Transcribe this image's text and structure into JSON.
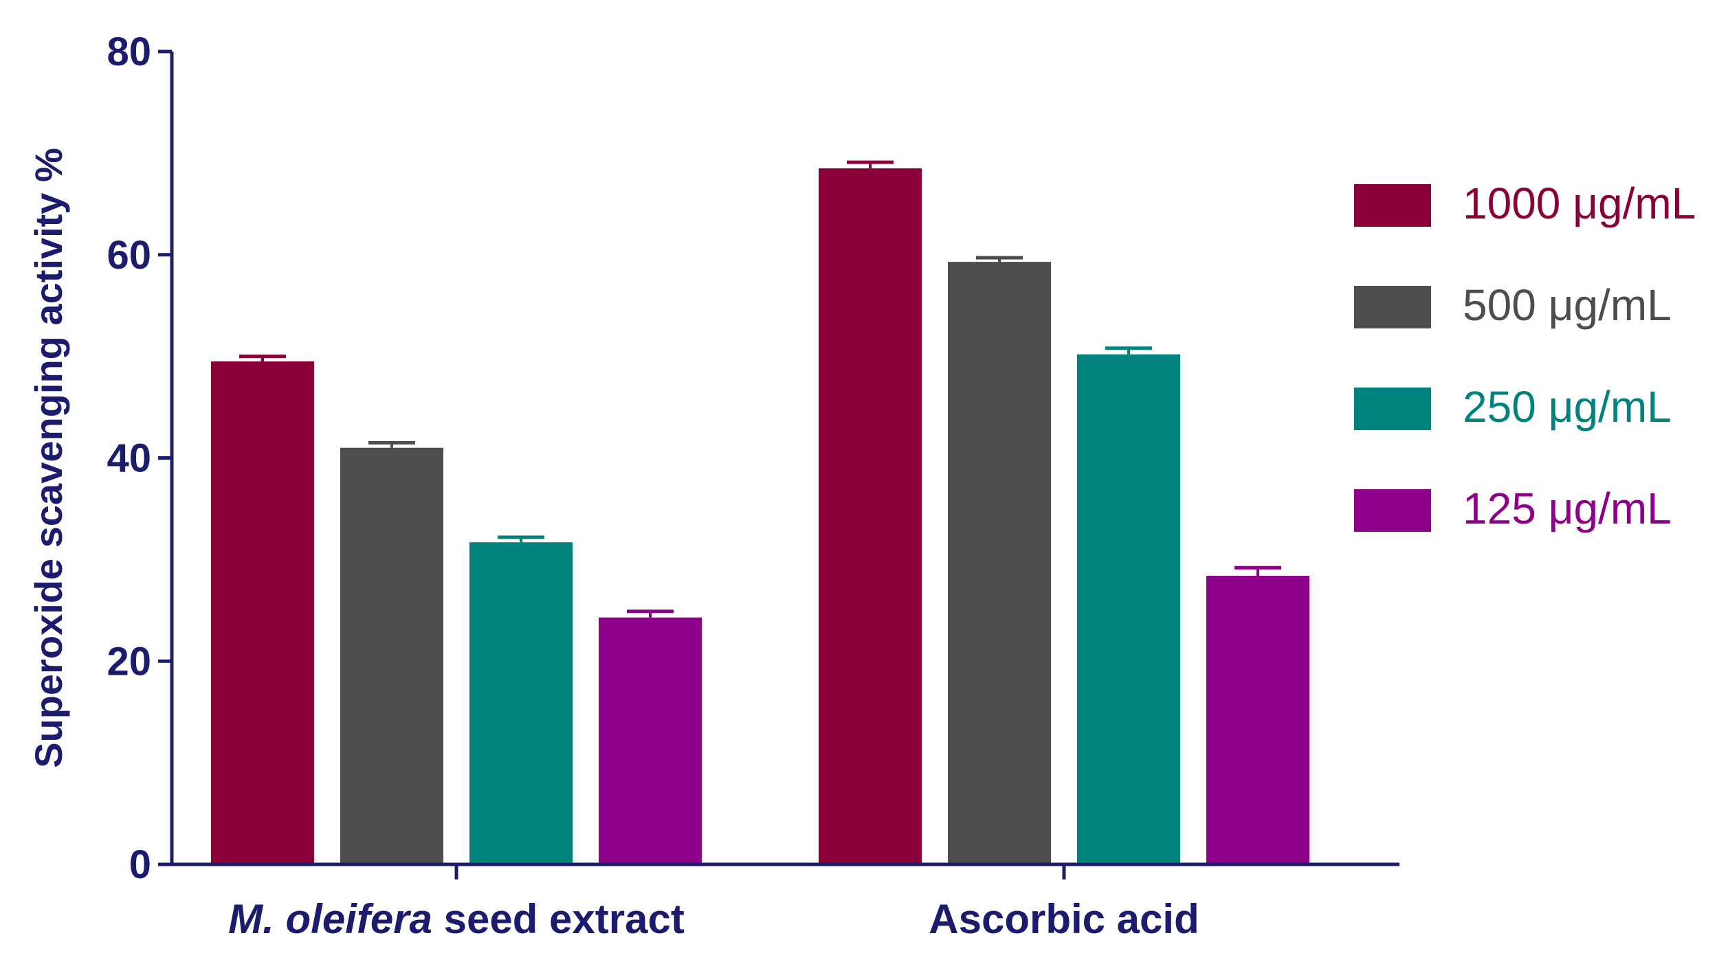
{
  "chart_data": {
    "type": "bar",
    "title": "",
    "xlabel": "",
    "ylabel": "Superoxide scavenging activity %",
    "ylim": [
      0,
      80
    ],
    "yticks": [
      0,
      20,
      40,
      60,
      80
    ],
    "grid": false,
    "legend_position": "right",
    "categories": [
      {
        "italic": "M. oleifera",
        "normal": " seed extract"
      },
      {
        "italic": "",
        "normal": "Ascorbic acid"
      }
    ],
    "series": [
      {
        "name": "1000 μg/mL",
        "color": "#8b0039",
        "values": [
          49.5,
          68.5
        ],
        "errors": [
          0.5,
          0.6
        ]
      },
      {
        "name": "500 μg/mL",
        "color": "#4d4d4d",
        "values": [
          41.0,
          59.3
        ],
        "errors": [
          0.5,
          0.4
        ]
      },
      {
        "name": "250 μg/mL",
        "color": "#00837f",
        "values": [
          31.7,
          50.2
        ],
        "errors": [
          0.5,
          0.6
        ]
      },
      {
        "name": "125 μg/mL",
        "color": "#8f008a",
        "values": [
          24.3,
          28.4
        ],
        "errors": [
          0.6,
          0.8
        ]
      }
    ],
    "axis_color": "#1c1c6e"
  }
}
